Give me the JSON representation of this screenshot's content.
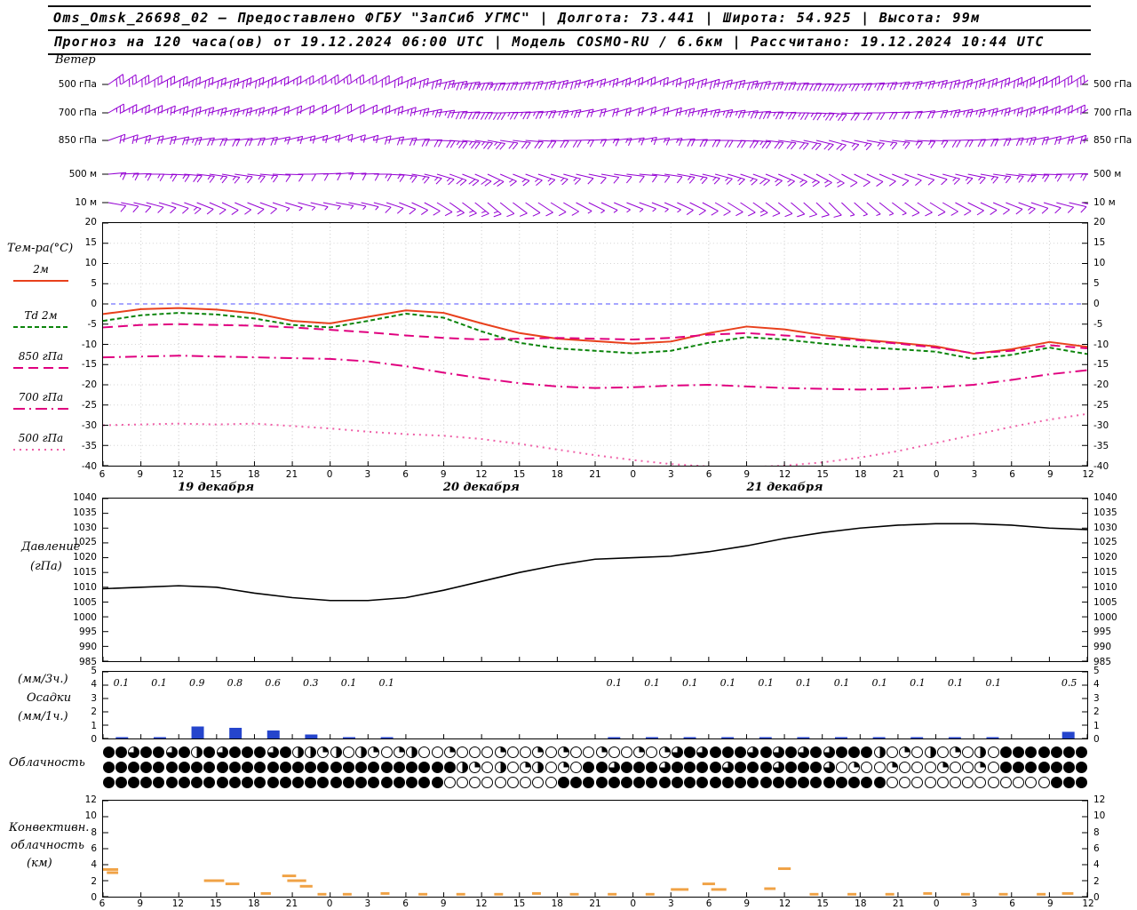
{
  "header": {
    "line1": "Oms_Omsk_26698_02 – Предоставлено ФГБУ \"ЗапСиб УГМС\" | Долгота: 73.441 | Широта: 54.925 | Высота: 99м",
    "line2": "Прогноз на 120 часа(ов) от 19.12.2024 06:00 UTC  | Модель COSMO-RU / 6.6км | Рассчитано: 19.12.2024 10:44 UTC"
  },
  "axis": {
    "hours_per_tick": 3,
    "hour_labels": [
      "6",
      "9",
      "12",
      "15",
      "18",
      "21",
      "0",
      "3",
      "6",
      "9",
      "12",
      "15",
      "18",
      "21",
      "0",
      "3",
      "6",
      "9",
      "12",
      "15",
      "18",
      "21",
      "0",
      "3",
      "6",
      "9",
      "12"
    ],
    "date_labels": [
      "19 декабря",
      "20 декабря",
      "21 декабря"
    ]
  },
  "chart_data": [
    {
      "id": "wind",
      "type": "wind-barbs",
      "label": "Ветер",
      "color": "#9400d3",
      "levels": [
        "500 гПа",
        "700 гПа",
        "850 гПа",
        "500 м",
        "10 м"
      ],
      "barbs_units": "deg,knots",
      "barbs": [
        [
          [
            55,
            30
          ],
          [
            60,
            30
          ],
          [
            65,
            35
          ],
          [
            70,
            30
          ],
          [
            65,
            30
          ],
          [
            60,
            25
          ],
          [
            55,
            25
          ],
          [
            60,
            30
          ],
          [
            70,
            30
          ],
          [
            80,
            35
          ],
          [
            85,
            35
          ],
          [
            80,
            30
          ],
          [
            75,
            30
          ],
          [
            70,
            25
          ],
          [
            65,
            25
          ],
          [
            70,
            30
          ],
          [
            75,
            30
          ],
          [
            80,
            35
          ],
          [
            85,
            30
          ],
          [
            90,
            30
          ],
          [
            85,
            25
          ],
          [
            80,
            25
          ],
          [
            75,
            30
          ],
          [
            70,
            30
          ],
          [
            65,
            35
          ],
          [
            60,
            30
          ],
          [
            55,
            30
          ]
        ],
        [
          [
            60,
            25
          ],
          [
            65,
            25
          ],
          [
            70,
            30
          ],
          [
            75,
            25
          ],
          [
            70,
            25
          ],
          [
            65,
            20
          ],
          [
            60,
            20
          ],
          [
            65,
            25
          ],
          [
            75,
            25
          ],
          [
            85,
            30
          ],
          [
            90,
            30
          ],
          [
            85,
            25
          ],
          [
            80,
            25
          ],
          [
            75,
            20
          ],
          [
            70,
            20
          ],
          [
            75,
            25
          ],
          [
            80,
            25
          ],
          [
            85,
            30
          ],
          [
            90,
            25
          ],
          [
            95,
            25
          ],
          [
            90,
            20
          ],
          [
            85,
            20
          ],
          [
            80,
            25
          ],
          [
            75,
            25
          ],
          [
            70,
            30
          ],
          [
            65,
            25
          ],
          [
            60,
            25
          ]
        ],
        [
          [
            70,
            20
          ],
          [
            75,
            20
          ],
          [
            80,
            25
          ],
          [
            85,
            20
          ],
          [
            80,
            20
          ],
          [
            75,
            15
          ],
          [
            70,
            15
          ],
          [
            75,
            20
          ],
          [
            85,
            20
          ],
          [
            95,
            25
          ],
          [
            100,
            25
          ],
          [
            95,
            20
          ],
          [
            90,
            20
          ],
          [
            85,
            15
          ],
          [
            80,
            15
          ],
          [
            85,
            20
          ],
          [
            90,
            20
          ],
          [
            95,
            25
          ],
          [
            100,
            20
          ],
          [
            105,
            20
          ],
          [
            100,
            15
          ],
          [
            95,
            15
          ],
          [
            90,
            20
          ],
          [
            85,
            20
          ],
          [
            80,
            25
          ],
          [
            75,
            20
          ],
          [
            70,
            20
          ]
        ],
        [
          [
            85,
            15
          ],
          [
            90,
            15
          ],
          [
            95,
            20
          ],
          [
            100,
            15
          ],
          [
            95,
            15
          ],
          [
            90,
            10
          ],
          [
            85,
            10
          ],
          [
            90,
            15
          ],
          [
            100,
            15
          ],
          [
            110,
            20
          ],
          [
            115,
            20
          ],
          [
            110,
            15
          ],
          [
            105,
            15
          ],
          [
            100,
            10
          ],
          [
            95,
            10
          ],
          [
            100,
            15
          ],
          [
            105,
            15
          ],
          [
            110,
            20
          ],
          [
            115,
            15
          ],
          [
            120,
            15
          ],
          [
            115,
            10
          ],
          [
            110,
            10
          ],
          [
            105,
            15
          ],
          [
            100,
            15
          ],
          [
            95,
            20
          ],
          [
            90,
            15
          ],
          [
            85,
            15
          ]
        ],
        [
          [
            100,
            10
          ],
          [
            105,
            10
          ],
          [
            110,
            15
          ],
          [
            115,
            10
          ],
          [
            110,
            10
          ],
          [
            105,
            5
          ],
          [
            100,
            5
          ],
          [
            105,
            10
          ],
          [
            115,
            10
          ],
          [
            125,
            15
          ],
          [
            130,
            15
          ],
          [
            125,
            10
          ],
          [
            120,
            10
          ],
          [
            115,
            5
          ],
          [
            110,
            5
          ],
          [
            115,
            10
          ],
          [
            120,
            10
          ],
          [
            125,
            15
          ],
          [
            130,
            10
          ],
          [
            135,
            10
          ],
          [
            130,
            5
          ],
          [
            125,
            10
          ],
          [
            120,
            10
          ],
          [
            115,
            10
          ],
          [
            110,
            15
          ],
          [
            105,
            10
          ],
          [
            100,
            10
          ]
        ]
      ]
    },
    {
      "id": "temperature",
      "type": "line",
      "label": "Тем-ра(°C)",
      "ylim": [
        -40,
        20
      ],
      "yticks": [
        20,
        15,
        10,
        5,
        0,
        -5,
        -10,
        -15,
        -20,
        -25,
        -30,
        -35,
        -40
      ],
      "grid": true,
      "zero_line_color": "#4d4dff",
      "series": [
        {
          "name": "2м",
          "color": "#e8401c",
          "dash": "",
          "values": [
            -2.5,
            -1.3,
            -1.0,
            -1.4,
            -2.3,
            -4.2,
            -4.8,
            -3.2,
            -1.6,
            -2.2,
            -4.8,
            -7.2,
            -8.6,
            -9.2,
            -9.8,
            -9.3,
            -7.2,
            -5.6,
            -6.3,
            -7.7,
            -8.8,
            -9.6,
            -10.5,
            -12.3,
            -11.2,
            -9.4,
            -10.6
          ]
        },
        {
          "name": "Td 2м",
          "color": "#0c840c",
          "dash": "5,3",
          "values": [
            -4.2,
            -2.8,
            -2.2,
            -2.6,
            -3.6,
            -5.2,
            -5.8,
            -4.2,
            -2.4,
            -3.4,
            -6.8,
            -9.6,
            -11.0,
            -11.6,
            -12.2,
            -11.6,
            -9.6,
            -8.2,
            -8.8,
            -9.8,
            -10.6,
            -11.2,
            -11.8,
            -13.6,
            -12.6,
            -10.8,
            -12.4
          ]
        },
        {
          "name": "850 гПа",
          "color": "#e0007f",
          "dash": "11,6",
          "values": [
            -5.8,
            -5.2,
            -5.0,
            -5.2,
            -5.4,
            -5.8,
            -6.4,
            -7.0,
            -7.8,
            -8.4,
            -8.8,
            -8.6,
            -8.4,
            -8.6,
            -8.8,
            -8.4,
            -7.6,
            -7.2,
            -7.8,
            -8.4,
            -9.0,
            -9.8,
            -10.8,
            -12.2,
            -11.6,
            -10.2,
            -11.0
          ]
        },
        {
          "name": "700 гПа",
          "color": "#e0007f",
          "dash": "13,5,2,5",
          "values": [
            -13.2,
            -13.0,
            -12.8,
            -13.0,
            -13.2,
            -13.4,
            -13.6,
            -14.2,
            -15.4,
            -17.0,
            -18.4,
            -19.6,
            -20.4,
            -20.8,
            -20.6,
            -20.2,
            -20.0,
            -20.4,
            -20.8,
            -21.0,
            -21.2,
            -21.0,
            -20.6,
            -20.0,
            -18.8,
            -17.4,
            -16.4
          ]
        },
        {
          "name": "500 гПа",
          "color": "#ef5fa7",
          "dash": "2,5",
          "values": [
            -30.0,
            -29.8,
            -29.6,
            -29.8,
            -29.6,
            -30.2,
            -30.8,
            -31.6,
            -32.2,
            -32.6,
            -33.4,
            -34.6,
            -36.0,
            -37.4,
            -38.6,
            -39.6,
            -40.2,
            -40.4,
            -40.0,
            -39.2,
            -38.0,
            -36.4,
            -34.4,
            -32.4,
            -30.4,
            -28.6,
            -27.2
          ]
        }
      ]
    },
    {
      "id": "pressure",
      "type": "line",
      "label": "Давление",
      "unit": "(гПа)",
      "ylim": [
        985,
        1040
      ],
      "color": "#000000",
      "yticks": [
        1040,
        1035,
        1030,
        1025,
        1020,
        1015,
        1010,
        1005,
        1000,
        995,
        990,
        985
      ],
      "values": [
        1009.5,
        1010,
        1010.5,
        1010,
        1008,
        1006.5,
        1005.5,
        1005.5,
        1006.5,
        1009,
        1012,
        1015,
        1017.5,
        1019.5,
        1020,
        1020.5,
        1022,
        1024,
        1026.5,
        1028.5,
        1030,
        1031,
        1031.5,
        1031.5,
        1031,
        1030,
        1029.5
      ]
    },
    {
      "id": "precipitation",
      "type": "bar",
      "unit_top": "(мм/3ч.)",
      "label": "Осадки",
      "unit_bottom": "(мм/1ч.)",
      "ylim": [
        0,
        5
      ],
      "yticks": [
        5,
        4,
        3,
        2,
        1,
        0
      ],
      "bar_color": "#2545cc",
      "values_3h": [
        0.1,
        0.1,
        0.9,
        0.8,
        0.6,
        0.3,
        0.1,
        0.1,
        null,
        null,
        null,
        null,
        null,
        0.1,
        0.1,
        0.1,
        0.1,
        0.1,
        0.1,
        0.1,
        0.1,
        0.1,
        0.1,
        0.1,
        null,
        0.5
      ]
    },
    {
      "id": "cloudiness",
      "type": "symbols",
      "label": "Облачность",
      "legend": "0=clear .. 4=overcast, hourly",
      "rows": [
        "443443424344434221202101200100010010100100101343444343434344420102010204444444",
        "444444444444444444444444444421020120104434443444434443444301001000100104444444",
        "444444444444444444444444444000000000444444444444444444444444440000000000000444"
      ]
    },
    {
      "id": "convective",
      "type": "segments",
      "label1": "Конвективн.",
      "label2": "облачность",
      "unit": "(км)",
      "ylim": [
        0,
        12
      ],
      "yticks": [
        12,
        10,
        8,
        6,
        4,
        2,
        0
      ],
      "color": "#f0a245",
      "segments": [
        [
          0,
          3.4,
          1.2
        ],
        [
          0.3,
          3.0,
          0.9
        ],
        [
          8,
          2.0,
          1.6
        ],
        [
          9.7,
          1.6,
          1.1
        ],
        [
          12.5,
          0.4,
          0.8
        ],
        [
          14.2,
          2.6,
          1.1
        ],
        [
          14.6,
          2.0,
          1.5
        ],
        [
          15.6,
          1.3,
          1.0
        ],
        [
          17,
          0.3,
          0.7
        ],
        [
          19,
          0.3,
          0.7
        ],
        [
          22,
          0.4,
          0.7
        ],
        [
          25,
          0.3,
          0.7
        ],
        [
          28,
          0.3,
          0.7
        ],
        [
          31,
          0.3,
          0.7
        ],
        [
          34,
          0.4,
          0.7
        ],
        [
          37,
          0.3,
          0.7
        ],
        [
          40,
          0.3,
          0.7
        ],
        [
          43,
          0.3,
          0.7
        ],
        [
          45,
          0.9,
          1.4
        ],
        [
          47.5,
          1.6,
          1.0
        ],
        [
          48.2,
          0.9,
          1.2
        ],
        [
          52.4,
          1.0,
          0.9
        ],
        [
          53.5,
          3.5,
          1.0
        ],
        [
          56,
          0.3,
          0.7
        ],
        [
          59,
          0.3,
          0.7
        ],
        [
          62,
          0.3,
          0.7
        ],
        [
          65,
          0.4,
          0.7
        ],
        [
          68,
          0.3,
          0.7
        ],
        [
          71,
          0.3,
          0.7
        ],
        [
          74,
          0.3,
          0.7
        ],
        [
          76,
          0.4,
          0.9
        ]
      ]
    }
  ]
}
